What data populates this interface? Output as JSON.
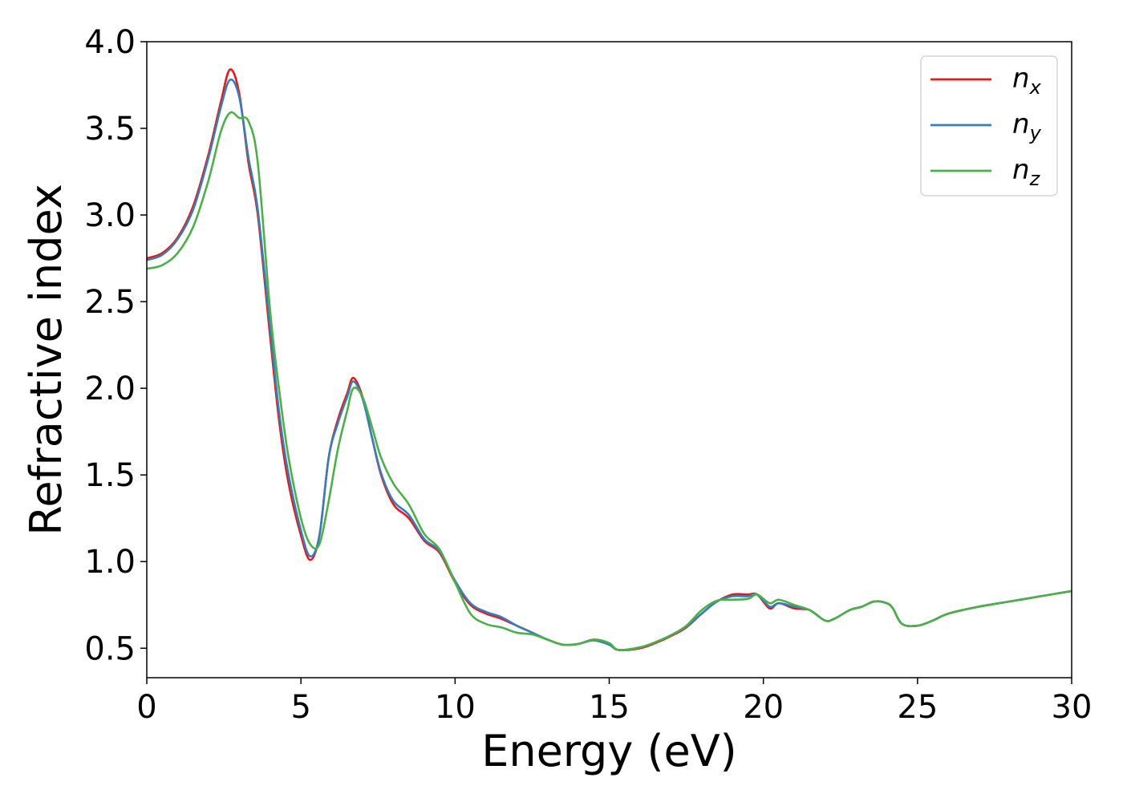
{
  "chart_data": {
    "type": "line",
    "title": "",
    "xlabel": "Energy (eV)",
    "ylabel": "Refractive index",
    "xlim": [
      0,
      30
    ],
    "ylim": [
      0.33,
      4.0
    ],
    "xticks": [
      0,
      5,
      10,
      15,
      20,
      25,
      30
    ],
    "yticks": [
      0.5,
      1.0,
      1.5,
      2.0,
      2.5,
      3.0,
      3.5,
      4.0
    ],
    "xtick_labels": [
      "0",
      "5",
      "10",
      "15",
      "20",
      "25",
      "30"
    ],
    "ytick_labels": [
      "0.5",
      "1.0",
      "1.5",
      "2.0",
      "2.5",
      "3.0",
      "3.5",
      "4.0"
    ],
    "grid": false,
    "legend_position": "top-right",
    "series": [
      {
        "name": "n",
        "subscript": "x",
        "color": "#e41a1c",
        "x": [
          0,
          0.5,
          1.0,
          1.5,
          2.0,
          2.4,
          2.7,
          3.0,
          3.3,
          3.6,
          4.0,
          4.3,
          4.6,
          5.0,
          5.3,
          5.6,
          5.9,
          6.2,
          6.5,
          6.7,
          7.0,
          7.3,
          7.6,
          8.0,
          8.5,
          9.0,
          9.5,
          10.0,
          10.5,
          11.0,
          11.5,
          12.0,
          12.5,
          13.0,
          13.5,
          14.0,
          14.5,
          15.0,
          15.3,
          16.0,
          16.5,
          17.0,
          17.5,
          18.0,
          18.5,
          19.0,
          19.5,
          19.8,
          20.2,
          20.5,
          21.0,
          21.5,
          22.0,
          22.3,
          22.8,
          23.2,
          23.6,
          24.0,
          24.2,
          24.5,
          25.0,
          25.5,
          26.0,
          27.0,
          28.0,
          29.0,
          30.0
        ],
        "y": [
          2.75,
          2.78,
          2.87,
          3.05,
          3.35,
          3.65,
          3.84,
          3.7,
          3.3,
          3.0,
          2.3,
          1.8,
          1.45,
          1.15,
          1.01,
          1.15,
          1.6,
          1.82,
          1.97,
          2.06,
          1.95,
          1.72,
          1.5,
          1.33,
          1.25,
          1.12,
          1.05,
          0.88,
          0.75,
          0.7,
          0.67,
          0.63,
          0.59,
          0.55,
          0.52,
          0.525,
          0.55,
          0.525,
          0.49,
          0.5,
          0.53,
          0.57,
          0.62,
          0.7,
          0.77,
          0.81,
          0.81,
          0.81,
          0.73,
          0.76,
          0.73,
          0.72,
          0.66,
          0.67,
          0.72,
          0.74,
          0.77,
          0.76,
          0.73,
          0.64,
          0.63,
          0.66,
          0.7,
          0.74,
          0.77,
          0.8,
          0.83
        ]
      },
      {
        "name": "n",
        "subscript": "y",
        "color": "#377eb8",
        "x": [
          0,
          0.5,
          1.0,
          1.5,
          2.0,
          2.4,
          2.7,
          3.0,
          3.3,
          3.6,
          4.0,
          4.3,
          4.6,
          5.0,
          5.3,
          5.6,
          5.9,
          6.2,
          6.5,
          6.7,
          7.0,
          7.3,
          7.6,
          8.0,
          8.5,
          9.0,
          9.5,
          10.0,
          10.5,
          11.0,
          11.5,
          12.0,
          12.5,
          13.0,
          13.5,
          14.0,
          14.5,
          15.0,
          15.3,
          16.0,
          16.5,
          17.0,
          17.5,
          18.0,
          18.5,
          19.0,
          19.5,
          19.8,
          20.2,
          20.5,
          21.0,
          21.5,
          22.0,
          22.3,
          22.8,
          23.2,
          23.6,
          24.0,
          24.2,
          24.5,
          25.0,
          25.5,
          26.0,
          27.0,
          28.0,
          29.0,
          30.0
        ],
        "y": [
          2.74,
          2.77,
          2.86,
          3.03,
          3.33,
          3.62,
          3.78,
          3.68,
          3.33,
          3.03,
          2.35,
          1.85,
          1.5,
          1.18,
          1.03,
          1.15,
          1.6,
          1.8,
          1.95,
          2.04,
          1.94,
          1.72,
          1.51,
          1.35,
          1.27,
          1.13,
          1.06,
          0.89,
          0.76,
          0.71,
          0.68,
          0.63,
          0.59,
          0.55,
          0.52,
          0.525,
          0.545,
          0.52,
          0.49,
          0.505,
          0.535,
          0.575,
          0.625,
          0.7,
          0.77,
          0.8,
          0.8,
          0.81,
          0.74,
          0.76,
          0.74,
          0.72,
          0.66,
          0.67,
          0.72,
          0.74,
          0.77,
          0.76,
          0.73,
          0.64,
          0.63,
          0.66,
          0.7,
          0.74,
          0.77,
          0.8,
          0.83
        ]
      },
      {
        "name": "n",
        "subscript": "z",
        "color": "#4daf4a",
        "x": [
          0,
          0.5,
          1.0,
          1.5,
          2.0,
          2.4,
          2.7,
          3.0,
          3.3,
          3.6,
          4.0,
          4.3,
          4.6,
          5.0,
          5.3,
          5.6,
          5.9,
          6.2,
          6.5,
          6.7,
          7.0,
          7.3,
          7.6,
          8.0,
          8.5,
          9.0,
          9.5,
          10.0,
          10.5,
          11.0,
          11.5,
          12.0,
          12.5,
          13.0,
          13.5,
          14.0,
          14.5,
          15.0,
          15.3,
          16.0,
          16.5,
          17.0,
          17.5,
          18.0,
          18.5,
          19.0,
          19.5,
          19.8,
          20.2,
          20.5,
          21.0,
          21.5,
          22.0,
          22.3,
          22.8,
          23.2,
          23.6,
          24.0,
          24.2,
          24.5,
          25.0,
          25.5,
          26.0,
          27.0,
          28.0,
          29.0,
          30.0
        ],
        "y": [
          2.69,
          2.71,
          2.78,
          2.93,
          3.2,
          3.48,
          3.59,
          3.56,
          3.54,
          3.3,
          2.45,
          1.98,
          1.6,
          1.25,
          1.1,
          1.1,
          1.35,
          1.65,
          1.87,
          2.0,
          1.95,
          1.78,
          1.6,
          1.45,
          1.33,
          1.16,
          1.07,
          0.88,
          0.7,
          0.64,
          0.62,
          0.59,
          0.58,
          0.55,
          0.52,
          0.525,
          0.55,
          0.53,
          0.49,
          0.505,
          0.535,
          0.575,
          0.63,
          0.72,
          0.775,
          0.78,
          0.785,
          0.81,
          0.76,
          0.78,
          0.75,
          0.72,
          0.66,
          0.67,
          0.72,
          0.74,
          0.77,
          0.76,
          0.73,
          0.64,
          0.63,
          0.66,
          0.7,
          0.74,
          0.77,
          0.8,
          0.83
        ]
      }
    ]
  }
}
